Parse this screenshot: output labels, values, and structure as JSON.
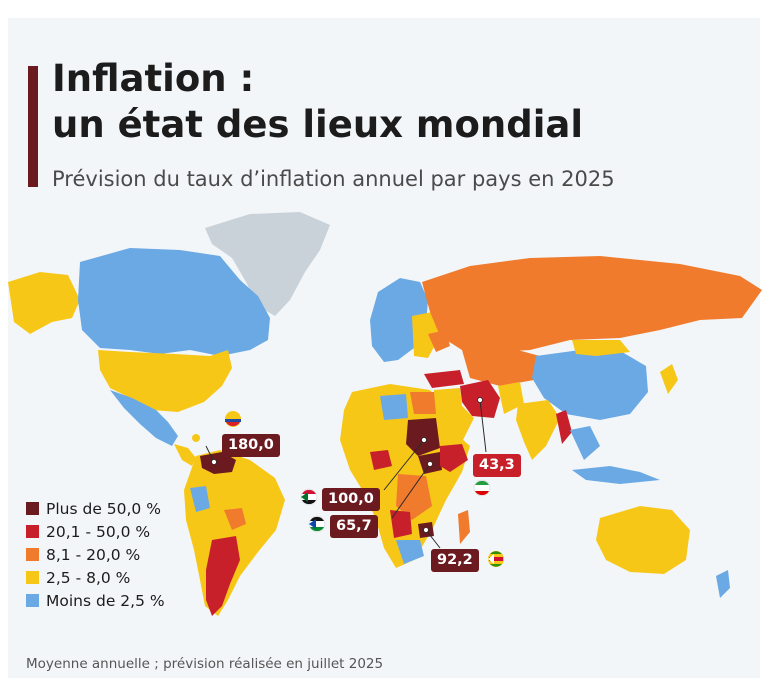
{
  "title_line1": "Inflation :",
  "title_line2": "un état des lieux mondial",
  "subtitle": "Prévision du taux d’inflation annuel par pays en 2025",
  "footnote": "Moyenne annuelle ; prévision réalisée en juillet 2025",
  "colors": {
    "accent": "#6b1a1f",
    "plus_50": "#6b1a1f",
    "c20_50": "#c8202a",
    "c8_20": "#f07b2d",
    "c2_8": "#f7c718",
    "moins_2_5": "#6aa9e4",
    "no_data": "#c9d2d9",
    "ocean": "#f3f6f9"
  },
  "legend": [
    {
      "label": "Plus de 50,0 %",
      "color": "#6b1a1f"
    },
    {
      "label": "20,1 - 50,0 %",
      "color": "#c8202a"
    },
    {
      "label": "8,1 - 20,0 %",
      "color": "#f07b2d"
    },
    {
      "label": "2,5 - 8,0 %",
      "color": "#f7c718"
    },
    {
      "label": "Moins de 2,5 %",
      "color": "#6aa9e4"
    }
  ],
  "callouts": {
    "venezuela": {
      "value": "180,0",
      "flag": "venezuela-flag-icon"
    },
    "iran": {
      "value": "43,3",
      "flag": "iran-flag-icon"
    },
    "sudan": {
      "value": "100,0",
      "flag": "sudan-flag-icon"
    },
    "south_sudan": {
      "value": "65,7",
      "flag": "south-sudan-flag-icon"
    },
    "zimbabwe": {
      "value": "92,2",
      "flag": "zimbabwe-flag-icon"
    }
  }
}
